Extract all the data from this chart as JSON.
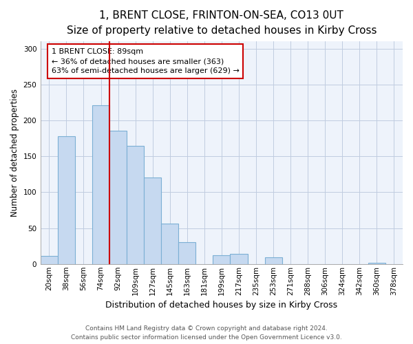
{
  "title": "1, BRENT CLOSE, FRINTON-ON-SEA, CO13 0UT",
  "subtitle": "Size of property relative to detached houses in Kirby Cross",
  "xlabel": "Distribution of detached houses by size in Kirby Cross",
  "ylabel": "Number of detached properties",
  "bin_labels": [
    "20sqm",
    "38sqm",
    "56sqm",
    "74sqm",
    "92sqm",
    "109sqm",
    "127sqm",
    "145sqm",
    "163sqm",
    "181sqm",
    "199sqm",
    "217sqm",
    "235sqm",
    "253sqm",
    "271sqm",
    "288sqm",
    "306sqm",
    "324sqm",
    "342sqm",
    "360sqm",
    "378sqm"
  ],
  "bar_values": [
    11,
    178,
    0,
    221,
    186,
    165,
    121,
    56,
    30,
    0,
    12,
    14,
    0,
    9,
    0,
    0,
    0,
    0,
    0,
    2,
    0
  ],
  "bar_color": "#c6d9f0",
  "bar_edge_color": "#7bafd4",
  "vline_color": "#cc0000",
  "vline_index": 3.5,
  "annotation_line1": "1 BRENT CLOSE: 89sqm",
  "annotation_line2": "← 36% of detached houses are smaller (363)",
  "annotation_line3": "63% of semi-detached houses are larger (629) →",
  "annotation_box_color": "#ffffff",
  "annotation_box_edge": "#cc0000",
  "ylim": [
    0,
    310
  ],
  "yticks": [
    0,
    50,
    100,
    150,
    200,
    250,
    300
  ],
  "footnote1": "Contains HM Land Registry data © Crown copyright and database right 2024.",
  "footnote2": "Contains public sector information licensed under the Open Government Licence v3.0.",
  "title_fontsize": 11,
  "subtitle_fontsize": 9.5,
  "xlabel_fontsize": 9,
  "ylabel_fontsize": 8.5,
  "tick_fontsize": 7.5,
  "annotation_fontsize": 8,
  "footnote_fontsize": 6.5,
  "bg_color": "#eef3fb"
}
